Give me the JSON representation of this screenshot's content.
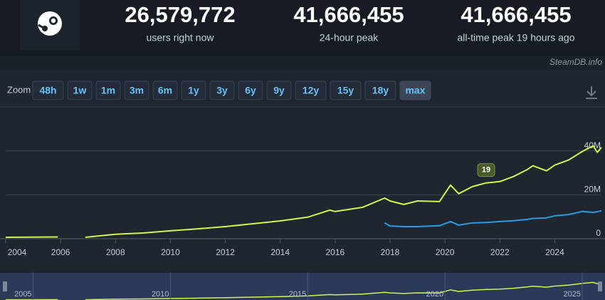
{
  "header": {
    "stats": [
      {
        "value": "26,579,772",
        "label": "users right now"
      },
      {
        "value": "41,666,455",
        "label": "24-hour peak"
      },
      {
        "value": "41,666,455",
        "label": "all-time peak 19 hours ago"
      }
    ],
    "credit": "SteamDB.info"
  },
  "zoom": {
    "label": "Zoom",
    "buttons": [
      "48h",
      "1w",
      "1m",
      "3m",
      "6m",
      "1y",
      "3y",
      "6y",
      "9y",
      "12y",
      "15y",
      "18y",
      "max"
    ]
  },
  "chart_data": {
    "type": "line",
    "x": [
      2004,
      2005,
      2005.9,
      2006.4,
      2006.9,
      2008,
      2009,
      2010,
      2011,
      2012,
      2013,
      2014,
      2015,
      2015.8,
      2016,
      2017,
      2017.8,
      2018,
      2018.5,
      2019,
      2019.8,
      2020.2,
      2020.5,
      2021,
      2021.5,
      2022,
      2022.5,
      2023,
      2023.2,
      2023.7,
      2024,
      2024.5,
      2025,
      2025.4,
      2025.55,
      2025.7
    ],
    "series": [
      {
        "color": "#d4f34a",
        "values": [
          650000,
          700000,
          800000,
          null,
          650000,
          2000000,
          2600000,
          3600000,
          4500000,
          5500000,
          6800000,
          8100000,
          9800000,
          13000000,
          12400000,
          14300000,
          18500000,
          17200000,
          15600000,
          17200000,
          16900000,
          24400000,
          20500000,
          23700000,
          25400000,
          26000000,
          28300000,
          31500000,
          33200000,
          30900000,
          33500000,
          35800000,
          39700000,
          42300000,
          39300000,
          41600000
        ]
      },
      {
        "color": "#2a9be0",
        "values": [
          null,
          null,
          null,
          null,
          null,
          null,
          null,
          null,
          null,
          null,
          null,
          null,
          null,
          null,
          null,
          null,
          7200000,
          5800000,
          5500000,
          5500000,
          5900000,
          7800000,
          6200000,
          7200000,
          7400000,
          7800000,
          8200000,
          8800000,
          9200000,
          9500000,
          10400000,
          11000000,
          12400000,
          12000000,
          12300000,
          12700000
        ]
      }
    ],
    "annotation": "19",
    "xlim": [
      2004,
      2025.7
    ],
    "xticks": [
      2004,
      2006,
      2008,
      2010,
      2012,
      2014,
      2016,
      2018,
      2020,
      2022,
      2024
    ],
    "ylim": [
      0,
      60000000
    ],
    "yticks": [
      0,
      {
        "value": 20000000,
        "label": "20M"
      },
      {
        "value": 40000000,
        "label": "40M"
      }
    ],
    "grid": true,
    "navigator_ticks": [
      2005,
      2010,
      2015,
      2020,
      2025
    ]
  }
}
